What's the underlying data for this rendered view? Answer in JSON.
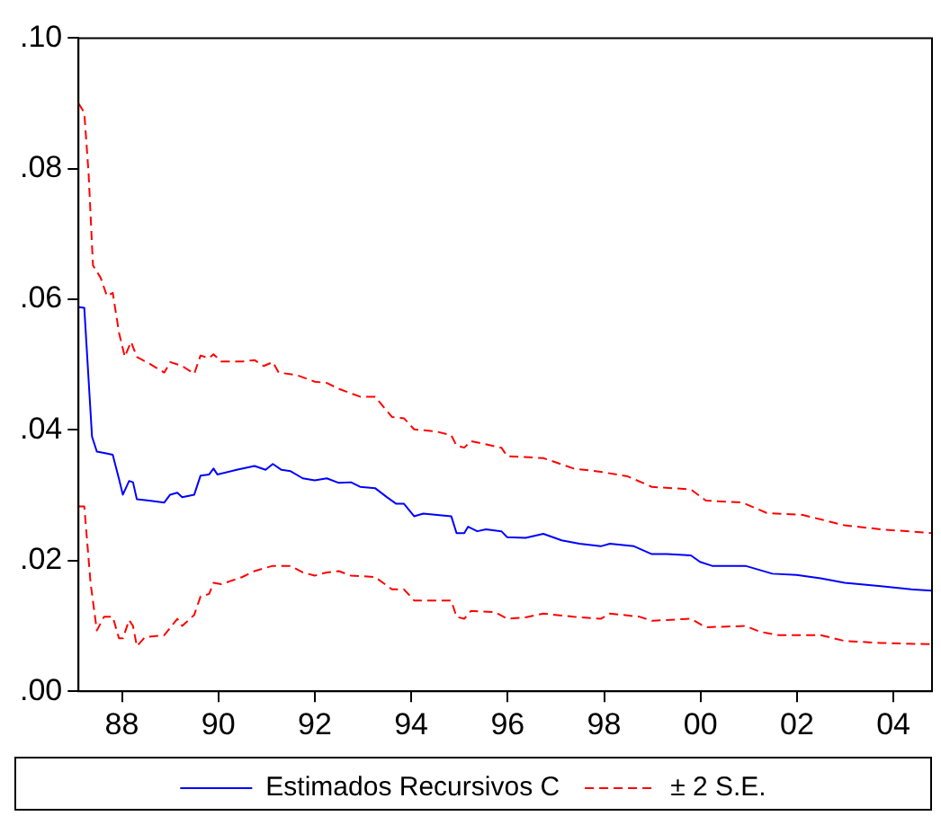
{
  "chart_data": {
    "type": "line",
    "xlim": [
      1987.1,
      2004.8
    ],
    "ylim": [
      0,
      0.1
    ],
    "xticks": [
      {
        "value": 1988,
        "label": "88"
      },
      {
        "value": 1990,
        "label": "90"
      },
      {
        "value": 1992,
        "label": "92"
      },
      {
        "value": 1994,
        "label": "94"
      },
      {
        "value": 1996,
        "label": "96"
      },
      {
        "value": 1998,
        "label": "98"
      },
      {
        "value": 2000,
        "label": "00"
      },
      {
        "value": 2002,
        "label": "02"
      },
      {
        "value": 2004,
        "label": "04"
      }
    ],
    "yticks": [
      {
        "value": 0,
        "label": ".00"
      },
      {
        "value": 0.02,
        "label": ".02"
      },
      {
        "value": 0.04,
        "label": ".04"
      },
      {
        "value": 0.06,
        "label": ".06"
      },
      {
        "value": 0.08,
        "label": ".08"
      },
      {
        "value": 0.1,
        "label": ".10"
      }
    ],
    "grid": false,
    "legend": "bottom",
    "marker": "none",
    "series": [
      {
        "name": "Estimados Recursivos C",
        "color": "#0000ff",
        "line_style": "solid",
        "x": [
          1987.1,
          1987.22,
          1987.38,
          1987.48,
          1987.63,
          1987.81,
          1987.94,
          1988.02,
          1988.15,
          1988.23,
          1988.31,
          1988.56,
          1988.88,
          1989.0,
          1989.15,
          1989.25,
          1989.5,
          1989.63,
          1989.81,
          1989.9,
          1989.98,
          1990.38,
          1990.75,
          1990.98,
          1991.13,
          1991.31,
          1991.5,
          1991.75,
          1992.0,
          1992.25,
          1992.5,
          1992.75,
          1992.94,
          1993.25,
          1993.5,
          1993.69,
          1993.85,
          1994.06,
          1994.25,
          1994.83,
          1994.94,
          1995.1,
          1995.18,
          1995.37,
          1995.55,
          1995.87,
          1995.99,
          1996.37,
          1996.74,
          1997.12,
          1997.49,
          1997.93,
          1998.12,
          1998.62,
          1998.99,
          1999.3,
          1999.8,
          1999.99,
          2000.24,
          2000.93,
          2001.49,
          2001.99,
          2002.49,
          2002.99,
          2003.74,
          2004.37,
          2004.8
        ],
        "values": [
          0.0588,
          0.0587,
          0.039,
          0.0367,
          0.0365,
          0.0362,
          0.0325,
          0.0301,
          0.0322,
          0.032,
          0.0294,
          0.0292,
          0.0289,
          0.0301,
          0.0304,
          0.0297,
          0.0301,
          0.033,
          0.0332,
          0.0341,
          0.0332,
          0.0339,
          0.0345,
          0.0339,
          0.0348,
          0.0339,
          0.0337,
          0.0326,
          0.0323,
          0.0326,
          0.0319,
          0.032,
          0.0313,
          0.0311,
          0.0297,
          0.0287,
          0.0287,
          0.0268,
          0.0272,
          0.0268,
          0.0242,
          0.0242,
          0.0252,
          0.0245,
          0.0248,
          0.0245,
          0.0236,
          0.0235,
          0.0241,
          0.0231,
          0.0226,
          0.0222,
          0.0226,
          0.0222,
          0.021,
          0.021,
          0.0208,
          0.0198,
          0.0192,
          0.0192,
          0.018,
          0.0178,
          0.0173,
          0.0166,
          0.0161,
          0.0156,
          0.0154
        ]
      },
      {
        "name": "± 2 S.E.",
        "color": "#ff0000",
        "line_style": "dashed",
        "x": [
          1987.1,
          1987.22,
          1987.31,
          1987.4,
          1987.56,
          1987.69,
          1987.81,
          1987.94,
          1988.06,
          1988.19,
          1988.31,
          1988.56,
          1988.88,
          1989.0,
          1989.25,
          1989.5,
          1989.63,
          1989.81,
          1989.9,
          1990.06,
          1990.5,
          1990.75,
          1990.94,
          1991.13,
          1991.25,
          1991.63,
          1992.0,
          1992.25,
          1992.5,
          1992.94,
          1993.25,
          1993.6,
          1993.85,
          1994.06,
          1994.5,
          1994.83,
          1994.94,
          1995.1,
          1995.24,
          1995.49,
          1995.87,
          1995.99,
          1996.74,
          1997.37,
          1997.93,
          1998.49,
          1998.99,
          1999.8,
          2000.11,
          2000.87,
          2001.37,
          2002.12,
          2002.99,
          2003.74,
          2004.8
        ],
        "values": [
          0.09,
          0.0886,
          0.0792,
          0.0652,
          0.0633,
          0.0605,
          0.061,
          0.0549,
          0.0512,
          0.0535,
          0.0512,
          0.0502,
          0.0488,
          0.0504,
          0.0498,
          0.0486,
          0.0514,
          0.051,
          0.0516,
          0.0505,
          0.0505,
          0.0507,
          0.0498,
          0.0504,
          0.0488,
          0.0484,
          0.0474,
          0.0472,
          0.0463,
          0.0451,
          0.0451,
          0.042,
          0.0418,
          0.0401,
          0.0398,
          0.0392,
          0.0376,
          0.0373,
          0.0383,
          0.0379,
          0.0373,
          0.036,
          0.0357,
          0.0341,
          0.0336,
          0.0329,
          0.0313,
          0.0309,
          0.0292,
          0.0289,
          0.0273,
          0.027,
          0.0254,
          0.0248,
          0.0242
        ]
      },
      {
        "color": "#ff0000",
        "line_style": "dashed",
        "x": [
          1987.1,
          1987.22,
          1987.35,
          1987.48,
          1987.63,
          1987.81,
          1987.94,
          1988.02,
          1988.15,
          1988.23,
          1988.31,
          1988.48,
          1988.88,
          1989.15,
          1989.25,
          1989.5,
          1989.63,
          1989.81,
          1989.9,
          1990.06,
          1990.5,
          1990.75,
          1990.98,
          1991.13,
          1991.5,
          1991.75,
          1992.0,
          1992.25,
          1992.5,
          1992.75,
          1993.25,
          1993.6,
          1993.85,
          1994.06,
          1994.83,
          1994.94,
          1995.1,
          1995.24,
          1995.74,
          1995.99,
          1996.37,
          1996.74,
          1997.37,
          1997.93,
          1998.12,
          1998.74,
          1998.99,
          1999.8,
          2000.11,
          2000.93,
          2001.24,
          2001.62,
          2002.49,
          2002.99,
          2003.74,
          2004.8
        ],
        "values": [
          0.0283,
          0.0283,
          0.0166,
          0.0093,
          0.0114,
          0.0114,
          0.0081,
          0.0081,
          0.0109,
          0.01,
          0.0069,
          0.0083,
          0.0086,
          0.0111,
          0.01,
          0.0117,
          0.0145,
          0.0149,
          0.0166,
          0.0164,
          0.0175,
          0.0184,
          0.0189,
          0.0192,
          0.0192,
          0.0182,
          0.0177,
          0.0182,
          0.0184,
          0.0177,
          0.0175,
          0.0156,
          0.0156,
          0.0139,
          0.0139,
          0.0114,
          0.0111,
          0.0123,
          0.0121,
          0.0111,
          0.0113,
          0.0119,
          0.0114,
          0.0111,
          0.0119,
          0.0114,
          0.0108,
          0.0111,
          0.0098,
          0.01,
          0.0091,
          0.0086,
          0.0086,
          0.0077,
          0.0074,
          0.0072
        ]
      }
    ]
  }
}
